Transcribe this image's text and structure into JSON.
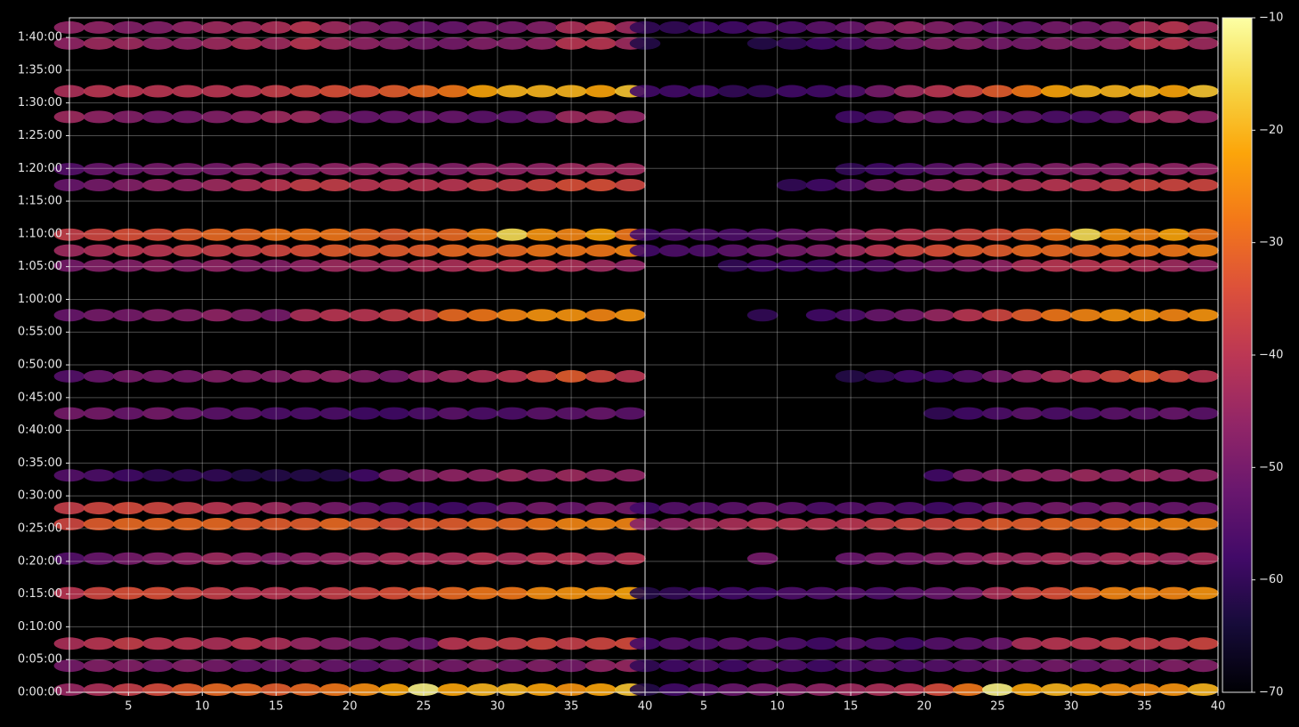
{
  "chart_data": {
    "type": "scatter-heatmap",
    "colormap": "inferno",
    "grid": true,
    "xlim": [
      1,
      40
    ],
    "xticks": [
      5,
      10,
      15,
      20,
      25,
      30,
      35,
      40
    ],
    "ylim": [
      0,
      6180
    ],
    "yticks": [
      {
        "value": 0,
        "label": "0:00:00"
      },
      {
        "value": 300,
        "label": "0:05:00"
      },
      {
        "value": 600,
        "label": "0:10:00"
      },
      {
        "value": 900,
        "label": "0:15:00"
      },
      {
        "value": 1200,
        "label": "0:20:00"
      },
      {
        "value": 1500,
        "label": "0:25:00"
      },
      {
        "value": 1800,
        "label": "0:30:00"
      },
      {
        "value": 2100,
        "label": "0:35:00"
      },
      {
        "value": 2400,
        "label": "0:40:00"
      },
      {
        "value": 2700,
        "label": "0:45:00"
      },
      {
        "value": 3000,
        "label": "0:50:00"
      },
      {
        "value": 3300,
        "label": "0:55:00"
      },
      {
        "value": 3600,
        "label": "1:00:00"
      },
      {
        "value": 3900,
        "label": "1:05:00"
      },
      {
        "value": 4200,
        "label": "1:10:00"
      },
      {
        "value": 4500,
        "label": "1:15:00"
      },
      {
        "value": 4800,
        "label": "1:20:00"
      },
      {
        "value": 5100,
        "label": "1:25:00"
      },
      {
        "value": 5400,
        "label": "1:30:00"
      },
      {
        "value": 5700,
        "label": "1:35:00"
      },
      {
        "value": 6000,
        "label": "1:40:00"
      }
    ],
    "colorbar": {
      "lim": [
        -70,
        -10
      ],
      "ticks": [
        {
          "value": -70,
          "label": "−70"
        },
        {
          "value": -60,
          "label": "−60"
        },
        {
          "value": -50,
          "label": "−50"
        },
        {
          "value": -40,
          "label": "−40"
        },
        {
          "value": -30,
          "label": "−30"
        },
        {
          "value": -20,
          "label": "−20"
        },
        {
          "value": -10,
          "label": "−10"
        }
      ]
    },
    "x": [
      1,
      3,
      5,
      7,
      9,
      11,
      13,
      15,
      17,
      19,
      21,
      23,
      25,
      27,
      29,
      31,
      33,
      35,
      37,
      39
    ],
    "rows": [
      24,
      243,
      446,
      908,
      1225,
      1541,
      1687,
      1987,
      2555,
      2895,
      3455,
      3909,
      4047,
      4193,
      4647,
      4793,
      5272,
      5507,
      5945,
      6091
    ],
    "panels": [
      {
        "values": [
          [
            -45,
            -42,
            -38,
            -35,
            -32,
            -30,
            -30,
            -32,
            -30,
            -28,
            -25,
            -22,
            -12,
            -22,
            -20,
            -20,
            -22,
            -24,
            -22,
            -18
          ],
          [
            -50,
            -48,
            -48,
            -50,
            -48,
            -50,
            -52,
            -52,
            -50,
            -52,
            -54,
            -52,
            -50,
            -50,
            -48,
            -50,
            -48,
            -50,
            -46,
            -45
          ],
          [
            -42,
            -40,
            -38,
            -40,
            -40,
            -42,
            -40,
            -42,
            -45,
            -48,
            -50,
            -50,
            -52,
            -40,
            -38,
            -38,
            -36,
            -38,
            -36,
            -35
          ],
          [
            -40,
            -36,
            -34,
            -34,
            -36,
            -38,
            -40,
            -40,
            -40,
            -38,
            -36,
            -34,
            -32,
            -30,
            -28,
            -28,
            -25,
            -24,
            -24,
            -22
          ],
          [
            -55,
            -52,
            -50,
            -48,
            -46,
            -44,
            -46,
            -48,
            -46,
            -45,
            -44,
            -42,
            -42,
            -42,
            -40,
            -42,
            -40,
            -40,
            -42,
            -40
          ],
          [
            -36,
            -32,
            -30,
            -30,
            -30,
            -30,
            -32,
            -32,
            -32,
            -30,
            -32,
            -34,
            -32,
            -32,
            -30,
            -30,
            -28,
            -26,
            -26,
            -26
          ],
          [
            -38,
            -36,
            -35,
            -36,
            -38,
            -40,
            -42,
            -44,
            -48,
            -50,
            -54,
            -56,
            -58,
            -58,
            -56,
            -52,
            -50,
            -52,
            -50,
            -50
          ],
          [
            -55,
            -56,
            -58,
            -60,
            -60,
            -60,
            -62,
            -62,
            -62,
            -62,
            -58,
            -50,
            -48,
            -46,
            -46,
            -44,
            -46,
            -44,
            -46,
            -46
          ],
          [
            -50,
            -50,
            -52,
            -50,
            -52,
            -54,
            -54,
            -56,
            -56,
            -56,
            -58,
            -58,
            -56,
            -54,
            -56,
            -56,
            -54,
            -54,
            -52,
            -54
          ],
          [
            -55,
            -52,
            -50,
            -50,
            -50,
            -48,
            -48,
            -48,
            -46,
            -46,
            -48,
            -50,
            -46,
            -44,
            -42,
            -40,
            -36,
            -32,
            -36,
            -40
          ],
          [
            -52,
            -50,
            -50,
            -48,
            -48,
            -46,
            -48,
            -50,
            -42,
            -40,
            -40,
            -38,
            -36,
            -30,
            -28,
            -26,
            -24,
            -24,
            -26,
            -24
          ],
          [
            -50,
            -48,
            -48,
            -46,
            -48,
            -46,
            -48,
            -48,
            -46,
            -44,
            -44,
            -44,
            -42,
            -42,
            -40,
            -40,
            -40,
            -42,
            -44,
            -46
          ],
          [
            -44,
            -42,
            -40,
            -40,
            -38,
            -38,
            -38,
            -36,
            -34,
            -32,
            -32,
            -32,
            -32,
            -30,
            -30,
            -30,
            -28,
            -28,
            -28,
            -26
          ],
          [
            -38,
            -36,
            -34,
            -34,
            -32,
            -30,
            -30,
            -28,
            -28,
            -28,
            -30,
            -32,
            -30,
            -30,
            -26,
            -15,
            -24,
            -26,
            -22,
            -28
          ],
          [
            -52,
            -50,
            -48,
            -46,
            -46,
            -44,
            -42,
            -40,
            -38,
            -38,
            -40,
            -40,
            -40,
            -40,
            -38,
            -38,
            -36,
            -34,
            -34,
            -36
          ],
          [
            -55,
            -52,
            -52,
            -50,
            -50,
            -50,
            -48,
            -48,
            -48,
            -46,
            -46,
            -46,
            -48,
            -48,
            -46,
            -46,
            -46,
            -44,
            -44,
            -44
          ],
          [
            -44,
            -46,
            -48,
            -50,
            -50,
            -48,
            -46,
            -44,
            -44,
            -50,
            -52,
            -52,
            -52,
            -52,
            -54,
            -54,
            -52,
            -44,
            -44,
            -46
          ],
          [
            -42,
            -40,
            -40,
            -40,
            -40,
            -40,
            -40,
            -38,
            -36,
            -34,
            -34,
            -32,
            -30,
            -28,
            -22,
            -20,
            -20,
            -20,
            -22,
            -18
          ],
          [
            -46,
            -44,
            -44,
            -46,
            -46,
            -44,
            -42,
            -44,
            -40,
            -44,
            -46,
            -48,
            -50,
            -50,
            -48,
            -48,
            -46,
            -40,
            -40,
            -44
          ],
          [
            -46,
            -46,
            -48,
            -48,
            -46,
            -44,
            -44,
            -42,
            -40,
            -44,
            -48,
            -50,
            -52,
            -52,
            -50,
            -50,
            -48,
            -42,
            -40,
            -44
          ]
        ]
      },
      {
        "values": [
          [
            -62,
            -58,
            -55,
            -52,
            -50,
            -48,
            -46,
            -44,
            -42,
            -40,
            -35,
            -28,
            -12,
            -22,
            -20,
            -22,
            -24,
            -25,
            -24,
            -20
          ],
          [
            -60,
            -58,
            -56,
            -58,
            -55,
            -56,
            -58,
            -56,
            -55,
            -56,
            -55,
            -54,
            -52,
            -52,
            -50,
            -52,
            -50,
            -50,
            -48,
            -48
          ],
          [
            -58,
            -55,
            -56,
            -54,
            -55,
            -56,
            -58,
            -55,
            -56,
            -58,
            -55,
            -54,
            -52,
            -42,
            -40,
            -40,
            -38,
            -38,
            -38,
            -36
          ],
          [
            -62,
            -60,
            -58,
            -58,
            -58,
            -56,
            -56,
            -55,
            -56,
            -54,
            -52,
            -50,
            -42,
            -36,
            -34,
            -30,
            -26,
            -26,
            -26,
            -24
          ],
          [
            null,
            null,
            null,
            null,
            -50,
            null,
            null,
            -52,
            -50,
            -50,
            -48,
            -46,
            -44,
            -44,
            -42,
            -44,
            -42,
            -42,
            -44,
            -42
          ],
          [
            -48,
            -46,
            -44,
            -42,
            -40,
            -40,
            -40,
            -40,
            -38,
            -36,
            -36,
            -34,
            -32,
            -32,
            -30,
            -30,
            -28,
            -26,
            -26,
            -26
          ],
          [
            -58,
            -55,
            -55,
            -54,
            -52,
            -54,
            -56,
            -55,
            -55,
            -56,
            -58,
            -56,
            -52,
            -52,
            -50,
            -52,
            -50,
            -52,
            -52,
            -52
          ],
          [
            null,
            null,
            null,
            null,
            null,
            null,
            null,
            null,
            null,
            null,
            -58,
            -50,
            -48,
            -46,
            -46,
            -44,
            -46,
            -44,
            -46,
            -46
          ],
          [
            null,
            null,
            null,
            null,
            null,
            null,
            null,
            null,
            null,
            null,
            -60,
            -58,
            -56,
            -54,
            -56,
            -56,
            -54,
            -54,
            -52,
            -54
          ],
          [
            null,
            null,
            null,
            null,
            null,
            null,
            null,
            -62,
            -60,
            -58,
            -58,
            -55,
            -50,
            -46,
            -42,
            -40,
            -36,
            -32,
            -36,
            -40
          ],
          [
            null,
            null,
            null,
            null,
            -60,
            null,
            -58,
            -56,
            -52,
            -50,
            -45,
            -40,
            -36,
            -32,
            -28,
            -26,
            -24,
            -24,
            -26,
            -24
          ],
          [
            null,
            null,
            null,
            -60,
            -58,
            -58,
            -58,
            -56,
            -55,
            -52,
            -50,
            -48,
            -46,
            -42,
            -40,
            -40,
            -40,
            -42,
            -44,
            -46
          ],
          [
            -58,
            -56,
            -56,
            -54,
            -52,
            -50,
            -48,
            -44,
            -40,
            -36,
            -34,
            -32,
            -32,
            -30,
            -30,
            -30,
            -28,
            -28,
            -28,
            -26
          ],
          [
            -58,
            -56,
            -56,
            -56,
            -55,
            -52,
            -50,
            -46,
            -42,
            -40,
            -38,
            -36,
            -34,
            -32,
            -28,
            -15,
            -24,
            -26,
            -22,
            -28
          ],
          [
            null,
            null,
            null,
            null,
            null,
            -60,
            -58,
            -55,
            -50,
            -48,
            -46,
            -44,
            -42,
            -42,
            -40,
            -40,
            -38,
            -36,
            -36,
            -36
          ],
          [
            null,
            null,
            null,
            null,
            null,
            null,
            null,
            -60,
            -58,
            -56,
            -54,
            -52,
            -50,
            -50,
            -48,
            -48,
            -48,
            -46,
            -46,
            -46
          ],
          [
            null,
            null,
            null,
            null,
            null,
            null,
            null,
            -58,
            -56,
            -50,
            -52,
            -52,
            -54,
            -54,
            -56,
            -56,
            -54,
            -44,
            -44,
            -46
          ],
          [
            -58,
            -58,
            -58,
            -60,
            -60,
            -58,
            -58,
            -56,
            -50,
            -44,
            -40,
            -36,
            -32,
            -28,
            -22,
            -20,
            -20,
            -20,
            -22,
            -18
          ],
          [
            -62,
            null,
            null,
            null,
            -62,
            -60,
            -58,
            -56,
            -52,
            -50,
            -48,
            -48,
            -50,
            -50,
            -48,
            -48,
            -46,
            -40,
            -40,
            -44
          ],
          [
            -60,
            -60,
            -58,
            -58,
            -56,
            -56,
            -54,
            -52,
            -48,
            -46,
            -48,
            -50,
            -52,
            -52,
            -50,
            -50,
            -48,
            -42,
            -40,
            -44
          ]
        ]
      }
    ]
  }
}
